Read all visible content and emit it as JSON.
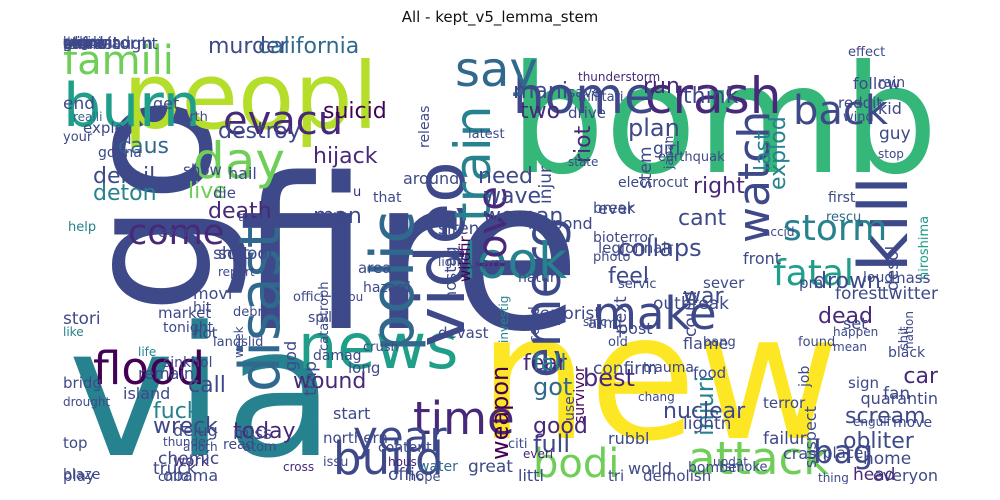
{
  "title": "All - kept_v5_lemma_stem",
  "palette": {
    "c0": "#440154",
    "c1": "#482878",
    "c2": "#3e4989",
    "c3": "#31688e",
    "c4": "#26828e",
    "c5": "#1f9e89",
    "c6": "#35b779",
    "c7": "#6ece58",
    "c8": "#b5de2b",
    "c9": "#fde725"
  },
  "words": [
    {
      "text": "fire",
      "color": "c2"
    },
    {
      "text": "bomb",
      "color": "c6"
    },
    {
      "text": "new",
      "color": "c9"
    },
    {
      "text": "via",
      "color": "c4"
    },
    {
      "text": "go",
      "color": "c2"
    },
    {
      "text": "peopl",
      "color": "c8"
    },
    {
      "text": "news",
      "color": "c5"
    },
    {
      "text": "burn",
      "color": "c5"
    },
    {
      "text": "video",
      "color": "c2"
    },
    {
      "text": "polic",
      "color": "c3"
    },
    {
      "text": "kill",
      "color": "c2"
    },
    {
      "text": "crash",
      "color": "c1"
    },
    {
      "text": "home",
      "color": "c2"
    },
    {
      "text": "disast",
      "color": "c3"
    },
    {
      "text": "emerg",
      "color": "c2"
    },
    {
      "text": "build",
      "color": "c2"
    },
    {
      "text": "attack",
      "color": "c7"
    },
    {
      "text": "say",
      "color": "c3"
    },
    {
      "text": "day",
      "color": "c7"
    },
    {
      "text": "look",
      "color": "c4"
    },
    {
      "text": "time",
      "color": "c1"
    },
    {
      "text": "flood",
      "color": "c0"
    },
    {
      "text": "make",
      "color": "c2"
    },
    {
      "text": "bodi",
      "color": "c7"
    },
    {
      "text": "year",
      "color": "c2"
    },
    {
      "text": "watch",
      "color": "c2"
    },
    {
      "text": "back",
      "color": "c2"
    },
    {
      "text": "famili",
      "color": "c7"
    },
    {
      "text": "evacu",
      "color": "c1"
    },
    {
      "text": "train",
      "color": "c4"
    },
    {
      "text": "fatal",
      "color": "c5"
    },
    {
      "text": "love",
      "color": "c1"
    },
    {
      "text": "storm",
      "color": "c4"
    },
    {
      "text": "come",
      "color": "c1"
    },
    {
      "text": "bag",
      "color": "c2"
    },
    {
      "text": "murder",
      "color": "c2"
    },
    {
      "text": "california",
      "color": "c3"
    },
    {
      "text": "hiroshima",
      "color": "c5"
    },
    {
      "text": "wound",
      "color": "c1"
    },
    {
      "text": "injuri",
      "color": "c4"
    },
    {
      "text": "drown",
      "color": "c2"
    },
    {
      "text": "scream",
      "color": "c2"
    },
    {
      "text": "weapon",
      "color": "c0"
    },
    {
      "text": "dead",
      "color": "c1"
    },
    {
      "text": "wreck",
      "color": "c2"
    },
    {
      "text": "nuclear",
      "color": "c2"
    },
    {
      "text": "fuck",
      "color": "c4"
    },
    {
      "text": "obliter",
      "color": "c2"
    },
    {
      "text": "accid",
      "color": "c2"
    },
    {
      "text": "rescu",
      "color": "c3"
    },
    {
      "text": "first",
      "color": "c2"
    },
    {
      "text": "collaps",
      "color": "c2"
    },
    {
      "text": "suicid",
      "color": "c0"
    },
    {
      "text": "hijack",
      "color": "c1"
    },
    {
      "text": "derail",
      "color": "c2"
    },
    {
      "text": "deton",
      "color": "c4"
    },
    {
      "text": "caus",
      "color": "c3"
    },
    {
      "text": "destroy",
      "color": "c2"
    },
    {
      "text": "think",
      "color": "c2"
    },
    {
      "text": "plan",
      "color": "c2"
    },
    {
      "text": "riot",
      "color": "c1"
    },
    {
      "text": "two",
      "color": "c1"
    },
    {
      "text": "mani",
      "color": "c2"
    },
    {
      "text": "explod",
      "color": "c4"
    },
    {
      "text": "last",
      "color": "c4"
    },
    {
      "text": "death",
      "color": "c1"
    },
    {
      "text": "live",
      "color": "c7"
    },
    {
      "text": "help",
      "color": "c4"
    },
    {
      "text": "survivor",
      "color": "c0"
    },
    {
      "text": "best",
      "color": "c1"
    },
    {
      "text": "fear",
      "color": "c1"
    },
    {
      "text": "got",
      "color": "c3"
    },
    {
      "text": "fall",
      "color": "c4"
    },
    {
      "text": "today",
      "color": "c1"
    },
    {
      "text": "call",
      "color": "c2"
    },
    {
      "text": "work",
      "color": "c1"
    },
    {
      "text": "world",
      "color": "c2"
    },
    {
      "text": "full",
      "color": "c2"
    },
    {
      "text": "good",
      "color": "c1"
    },
    {
      "text": "war",
      "color": "c2"
    },
    {
      "text": "feel",
      "color": "c2"
    },
    {
      "text": "right",
      "color": "c1"
    },
    {
      "text": "woman",
      "color": "c2"
    },
    {
      "text": "need",
      "color": "c2"
    },
    {
      "text": "wave",
      "color": "c2"
    },
    {
      "text": "cant",
      "color": "c2"
    },
    {
      "text": "run",
      "color": "c1"
    },
    {
      "text": "man",
      "color": "c2"
    },
    {
      "text": "get",
      "color": "c2"
    },
    {
      "text": "end",
      "color": "c2"
    },
    {
      "text": "realli",
      "color": "c3"
    },
    {
      "text": "servic",
      "color": "c2"
    },
    {
      "text": "collid",
      "color": "c2"
    },
    {
      "text": "wildfir",
      "color": "c0"
    },
    {
      "text": "hostag",
      "color": "c2"
    },
    {
      "text": "could",
      "color": "c2"
    },
    {
      "text": "life",
      "color": "c4"
    },
    {
      "text": "car",
      "color": "c1"
    },
    {
      "text": "black",
      "color": "c2"
    },
    {
      "text": "mass",
      "color": "c2"
    },
    {
      "text": "quarantin",
      "color": "c2"
    },
    {
      "text": "desol",
      "color": "c2"
    },
    {
      "text": "cross",
      "color": "c1"
    },
    {
      "text": "atom",
      "color": "c2"
    },
    {
      "text": "read",
      "color": "c2"
    },
    {
      "text": "top",
      "color": "c2"
    },
    {
      "text": "delug",
      "color": "c2"
    },
    {
      "text": "miss",
      "color": "c2"
    },
    {
      "text": "anoth",
      "color": "c2"
    },
    {
      "text": "issu",
      "color": "c2"
    },
    {
      "text": "blaze",
      "color": "c2"
    },
    {
      "text": "play",
      "color": "c2"
    },
    {
      "text": "obama",
      "color": "c2"
    },
    {
      "text": "offic",
      "color": "c2"
    },
    {
      "text": "hous",
      "color": "c1"
    },
    {
      "text": "hope",
      "color": "c2"
    },
    {
      "text": "water",
      "color": "c3"
    },
    {
      "text": "demolish",
      "color": "c2"
    },
    {
      "text": "everyon",
      "color": "c2"
    },
    {
      "text": "head",
      "color": "c1"
    },
    {
      "text": "thing",
      "color": "c2"
    },
    {
      "text": "smoke",
      "color": "c2"
    },
    {
      "text": "bomber",
      "color": "c2"
    },
    {
      "text": "tri",
      "color": "c2"
    },
    {
      "text": "littl",
      "color": "c2"
    },
    {
      "text": "great",
      "color": "c2"
    },
    {
      "text": "everi",
      "color": "c1"
    },
    {
      "text": "citi",
      "color": "c2"
    },
    {
      "text": "content",
      "color": "c2"
    },
    {
      "text": "northern",
      "color": "c2"
    },
    {
      "text": "start",
      "color": "c2"
    },
    {
      "text": "confirm",
      "color": "c2"
    },
    {
      "text": "chang",
      "color": "c2"
    },
    {
      "text": "crush",
      "color": "c2"
    },
    {
      "text": "damag",
      "color": "c2"
    },
    {
      "text": "devast",
      "color": "c2"
    },
    {
      "text": "flame",
      "color": "c2"
    },
    {
      "text": "terrorist",
      "color": "c2"
    },
    {
      "text": "investig",
      "color": "c4"
    },
    {
      "text": "photo",
      "color": "c2"
    },
    {
      "text": "even",
      "color": "c2"
    },
    {
      "text": "show",
      "color": "c2"
    },
    {
      "text": "oil",
      "color": "c2"
    },
    {
      "text": "school",
      "color": "c2"
    },
    {
      "text": "report",
      "color": "c2"
    },
    {
      "text": "catastroph",
      "color": "c2"
    },
    {
      "text": "hit",
      "color": "c2"
    },
    {
      "text": "hot",
      "color": "c2"
    },
    {
      "text": "movi",
      "color": "c2"
    },
    {
      "text": "stori",
      "color": "c2"
    },
    {
      "text": "like",
      "color": "c4"
    },
    {
      "text": "debri",
      "color": "c2"
    },
    {
      "text": "hazard",
      "color": "c2"
    },
    {
      "text": "area",
      "color": "c2"
    },
    {
      "text": "casualti",
      "color": "c2"
    },
    {
      "text": "siren",
      "color": "c2"
    },
    {
      "text": "light",
      "color": "c2"
    },
    {
      "text": "plea",
      "color": "c2"
    },
    {
      "text": "natur",
      "color": "c2"
    },
    {
      "text": "armi",
      "color": "c2"
    },
    {
      "text": "warn",
      "color": "c2"
    },
    {
      "text": "injur",
      "color": "c2"
    },
    {
      "text": "state",
      "color": "c2"
    },
    {
      "text": "latest",
      "color": "c2"
    },
    {
      "text": "releas",
      "color": "c2"
    },
    {
      "text": "reddit",
      "color": "c2"
    },
    {
      "text": "follow",
      "color": "c2"
    },
    {
      "text": "girl",
      "color": "c2"
    },
    {
      "text": "thunderstorm",
      "color": "c1"
    },
    {
      "text": "militari",
      "color": "c2"
    },
    {
      "text": "save",
      "color": "c2"
    },
    {
      "text": "drive",
      "color": "c2"
    },
    {
      "text": "ever",
      "color": "c2"
    },
    {
      "text": "stem",
      "color": "c2"
    },
    {
      "text": "japan",
      "color": "c2"
    },
    {
      "text": "earthquak",
      "color": "c2"
    },
    {
      "text": "electrocut",
      "color": "c2"
    },
    {
      "text": "break",
      "color": "c2"
    },
    {
      "text": "kid",
      "color": "c2"
    },
    {
      "text": "guy",
      "color": "c2"
    },
    {
      "text": "stop",
      "color": "c2"
    },
    {
      "text": "wind",
      "color": "c2"
    },
    {
      "text": "rain",
      "color": "c2"
    },
    {
      "text": "pm",
      "color": "c2"
    },
    {
      "text": "set",
      "color": "c2"
    },
    {
      "text": "forest",
      "color": "c2"
    },
    {
      "text": "happen",
      "color": "c2"
    },
    {
      "text": "found",
      "color": "c2"
    },
    {
      "text": "job",
      "color": "c2"
    },
    {
      "text": "sign",
      "color": "c2"
    },
    {
      "text": "suspect",
      "color": "c2"
    },
    {
      "text": "failur",
      "color": "c2"
    },
    {
      "text": "updat",
      "color": "c2"
    },
    {
      "text": "old",
      "color": "c2"
    },
    {
      "text": "use",
      "color": "c2"
    },
    {
      "text": "food",
      "color": "c2"
    },
    {
      "text": "respond",
      "color": "c2"
    },
    {
      "text": "twitter",
      "color": "c2"
    },
    {
      "text": "nation",
      "color": "c2"
    },
    {
      "text": "shit",
      "color": "c2"
    },
    {
      "text": "bioterror",
      "color": "c2"
    },
    {
      "text": "legionnair",
      "color": "c2"
    },
    {
      "text": "post",
      "color": "c2"
    },
    {
      "text": "next",
      "color": "c2"
    },
    {
      "text": "sinc",
      "color": "c2"
    },
    {
      "text": "offici",
      "color": "c2"
    },
    {
      "text": "spill",
      "color": "c2"
    },
    {
      "text": "long",
      "color": "c2"
    },
    {
      "text": "god",
      "color": "c2"
    },
    {
      "text": "trap",
      "color": "c2"
    },
    {
      "text": "week",
      "color": "c2"
    },
    {
      "text": "landslid",
      "color": "c2"
    },
    {
      "text": "sinkhol",
      "color": "c2"
    },
    {
      "text": "die",
      "color": "c2"
    },
    {
      "text": "hail",
      "color": "c2"
    },
    {
      "text": "shot",
      "color": "c2"
    },
    {
      "text": "bu",
      "color": "c2"
    },
    {
      "text": "u",
      "color": "c1"
    },
    {
      "text": "that",
      "color": "c2"
    },
    {
      "text": "bridg",
      "color": "c2"
    },
    {
      "text": "remain",
      "color": "c2"
    },
    {
      "text": "truck",
      "color": "c2"
    },
    {
      "text": "thunder",
      "color": "c2"
    },
    {
      "text": "child",
      "color": "c2"
    },
    {
      "text": "tonight",
      "color": "c2"
    },
    {
      "text": "market",
      "color": "c2"
    },
    {
      "text": "island",
      "color": "c2"
    },
    {
      "text": "chemic",
      "color": "c2"
    },
    {
      "text": "drought",
      "color": "c2"
    },
    {
      "text": "your",
      "color": "c2"
    },
    {
      "text": "gonna",
      "color": "c2"
    },
    {
      "text": "explos",
      "color": "c2"
    },
    {
      "text": "around",
      "color": "c2"
    },
    {
      "text": "outbreak",
      "color": "c2"
    },
    {
      "text": "total",
      "color": "c2"
    },
    {
      "text": "north",
      "color": "c2"
    },
    {
      "text": "loud",
      "color": "c2"
    },
    {
      "text": "sever",
      "color": "c2"
    },
    {
      "text": "front",
      "color": "c2"
    },
    {
      "text": "fan",
      "color": "c2"
    },
    {
      "text": "mean",
      "color": "c2"
    },
    {
      "text": "bang",
      "color": "c2"
    },
    {
      "text": "trauma",
      "color": "c2"
    },
    {
      "text": "terror",
      "color": "c2"
    },
    {
      "text": "crash",
      "color": "c2"
    },
    {
      "text": "lightn",
      "color": "c2"
    },
    {
      "text": "engulf",
      "color": "c2"
    },
    {
      "text": "effect",
      "color": "c2"
    },
    {
      "text": "move",
      "color": "c2"
    },
    {
      "text": "place",
      "color": "c2"
    },
    {
      "text": "rubbl",
      "color": "c2"
    },
    {
      "text": "home",
      "color": "c2"
    },
    {
      "text": "danger",
      "color": "c2"
    },
    {
      "text": "babi",
      "color": "c2"
    },
    {
      "text": "migrant",
      "color": "c2"
    },
    {
      "text": "game",
      "color": "c2"
    },
    {
      "text": "manslaught",
      "color": "c2"
    },
    {
      "text": "sandstorm",
      "color": "c2"
    },
    {
      "text": "seismic",
      "color": "c2"
    },
    {
      "text": "cyclon",
      "color": "c2"
    },
    {
      "text": "whirlwind",
      "color": "c2"
    },
    {
      "text": "pick",
      "color": "c2"
    },
    {
      "text": "china",
      "color": "c2"
    }
  ]
}
